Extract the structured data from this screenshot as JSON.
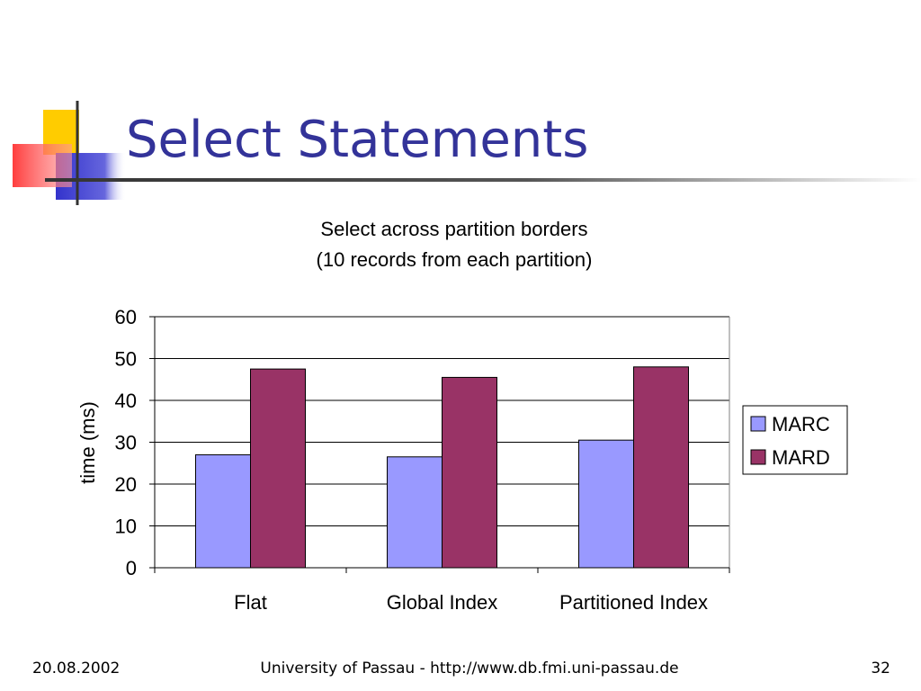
{
  "slide": {
    "title": "Select Statements"
  },
  "footer": {
    "date": "20.08.2002",
    "center": "University of Passau - http://www.db.fmi.uni-passau.de",
    "page": "32"
  },
  "chart_data": {
    "type": "bar",
    "title": "Select across partition borders",
    "subtitle": "(10 records from each partition)",
    "xlabel": "",
    "ylabel": "time (ms)",
    "categories": [
      "Flat",
      "Global Index",
      "Partitioned Index"
    ],
    "series": [
      {
        "name": "MARC",
        "values": [
          27,
          26.5,
          30.5
        ],
        "color": "#9999ff"
      },
      {
        "name": "MARD",
        "values": [
          47.5,
          45.5,
          48
        ],
        "color": "#993366"
      }
    ],
    "ylim": [
      0,
      60
    ],
    "yticks": [
      "0",
      "10",
      "20",
      "30",
      "40",
      "50",
      "60"
    ],
    "grid": true,
    "legend": "right"
  },
  "colors": {
    "title": "#333399",
    "logo_yellow": "#ffcc00",
    "logo_red": "#ff3333",
    "logo_blue": "#3333cc"
  }
}
